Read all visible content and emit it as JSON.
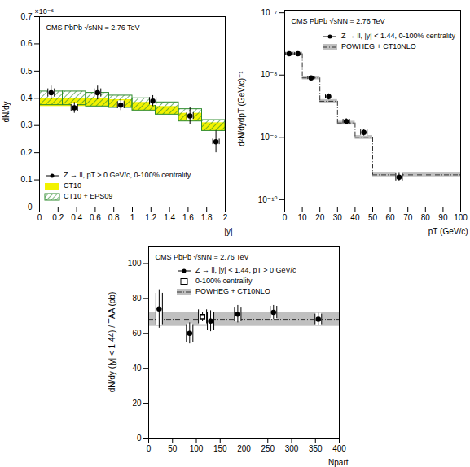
{
  "chart_data": [
    {
      "type": "errorbar",
      "annotation": "CMS PbPb √sNN = 2.76 TeV",
      "multiplier": "×10⁻⁶",
      "x_label": "|y|",
      "y_label": "dN/dy",
      "xlim": [
        0,
        2
      ],
      "xticks": [
        0,
        0.2,
        0.4,
        0.6,
        0.8,
        1,
        1.2,
        1.4,
        1.6,
        1.8,
        2
      ],
      "ylim": [
        0,
        0.7
      ],
      "yticks": [
        0,
        0.1,
        0.2,
        0.3,
        0.4,
        0.5,
        0.6,
        0.7
      ],
      "grid": false,
      "legend": "bottom-left",
      "series": [
        {
          "name": "Z → ll, pT > 0 GeV/c, 0-100% centrality",
          "type": "scatter",
          "marker": "circle",
          "color": "#000000",
          "x": [
            0.125,
            0.375,
            0.625,
            0.875,
            1.22,
            1.62,
            1.9
          ],
          "values": [
            0.42,
            0.365,
            0.42,
            0.375,
            0.39,
            0.335,
            0.24
          ],
          "stat_errors": [
            0.025,
            0.02,
            0.025,
            0.02,
            0.02,
            0.03,
            0.04
          ],
          "syst_errors": [
            0.015,
            0.012,
            0.015,
            0.013,
            0.013,
            0.012,
            0.01
          ]
        },
        {
          "name": "CT10",
          "type": "band",
          "color": "#f2f200",
          "bins": [
            0,
            0.25,
            0.5,
            0.75,
            1,
            1.25,
            1.5,
            1.75,
            2
          ],
          "lower": [
            0.37,
            0.37,
            0.37,
            0.365,
            0.355,
            0.34,
            0.315,
            0.28
          ],
          "upper": [
            0.4,
            0.4,
            0.4,
            0.395,
            0.385,
            0.37,
            0.345,
            0.31
          ]
        },
        {
          "name": "CT10 + EPS09",
          "type": "band",
          "color": "#2e8b2e",
          "line_style": "hatched",
          "bins": [
            0,
            0.25,
            0.5,
            0.75,
            1,
            1.25,
            1.5,
            1.75,
            2
          ],
          "lower": [
            0.375,
            0.375,
            0.37,
            0.365,
            0.355,
            0.34,
            0.315,
            0.28
          ],
          "upper": [
            0.425,
            0.425,
            0.42,
            0.41,
            0.4,
            0.385,
            0.36,
            0.32
          ]
        }
      ]
    },
    {
      "type": "errorbar",
      "annotation": "CMS PbPb √sNN = 2.76 TeV",
      "x_label": "pT (GeV/c)",
      "y_label": "d²N/dydpT (GeV/c)⁻¹",
      "log": "y",
      "xlim": [
        0,
        100
      ],
      "xticks": [
        0,
        10,
        20,
        30,
        40,
        50,
        60,
        70,
        80,
        90,
        100
      ],
      "ylim": [
        7.6e-11,
        1.1e-07
      ],
      "yticks": [
        {
          "value": 1e-10,
          "label": "10⁻¹⁰"
        },
        {
          "value": 1e-09,
          "label": "10⁻⁹"
        },
        {
          "value": 1e-08,
          "label": "10⁻⁸"
        },
        {
          "value": 1e-07,
          "label": "10⁻⁷"
        }
      ],
      "grid": false,
      "legend": "top-right",
      "series": [
        {
          "name": "Z → ll, |y| < 1.44, 0-100% centrality",
          "type": "scatter",
          "marker": "circle",
          "color": "#000000",
          "x": [
            2.5,
            7.5,
            15,
            25,
            35,
            45,
            65
          ],
          "values": [
            2.2e-08,
            2.2e-08,
            9e-09,
            4.5e-09,
            1.8e-09,
            1.2e-09,
            2.3e-10
          ],
          "stat_errors": [
            1.2e-09,
            1.2e-09,
            5e-10,
            5e-10,
            2e-10,
            1.5e-10,
            3.5e-11
          ],
          "syst_errors": [
            1e-09,
            1e-09,
            5e-10,
            3e-10,
            1.5e-10,
            1.2e-10,
            3e-11
          ]
        },
        {
          "name": "POWHEG + CT10NLO",
          "type": "step_band",
          "color": "#c0c0c0",
          "line_style": "dashdot",
          "bins": [
            0,
            5,
            10,
            20,
            30,
            40,
            50,
            100
          ],
          "values": [
            2.2e-08,
            2.2e-08,
            9e-09,
            3.8e-09,
            1.7e-09,
            1e-09,
            2.5e-10
          ],
          "lower": [
            2.05e-08,
            2.05e-08,
            8.4e-09,
            3.55e-09,
            1.58e-09,
            9.3e-10,
            2.33e-10
          ],
          "upper": [
            2.35e-08,
            2.35e-08,
            9.6e-09,
            4.05e-09,
            1.82e-09,
            1.07e-09,
            2.68e-10
          ]
        }
      ]
    },
    {
      "type": "errorbar",
      "annotation": "CMS PbPb √sNN = 2.76 TeV",
      "x_label": "Npart",
      "y_label": "dN/dy (|y| < 1.44) / TAA (pb)",
      "xlim": [
        0,
        400
      ],
      "xticks": [
        0,
        50,
        100,
        150,
        200,
        250,
        300,
        350,
        400
      ],
      "ylim": [
        0,
        110
      ],
      "yticks": [
        0,
        20,
        40,
        60,
        80,
        100
      ],
      "grid": false,
      "legend": "top-left",
      "series": [
        {
          "name": "Z → ll, |y| < 1.44, pT > 0 GeV/c",
          "type": "scatter",
          "marker": "circle",
          "color": "#000000",
          "x": [
            22,
            86,
            130,
            187,
            262,
            356
          ],
          "values": [
            74,
            60,
            67,
            71,
            72,
            68
          ],
          "stat_errors": [
            11,
            6,
            6,
            5,
            4,
            3.5
          ],
          "syst_errors": [
            9,
            5,
            5,
            4,
            3.5,
            3
          ]
        },
        {
          "name": "0-100% centrality",
          "type": "scatter",
          "marker": "open_square",
          "color": "#000000",
          "x": [
            113
          ],
          "values": [
            69.5
          ],
          "stat_errors": [
            2.5
          ],
          "syst_errors": [
            4
          ]
        },
        {
          "name": "POWHEG + CT10NLO",
          "type": "hband",
          "color": "#c0c0c0",
          "line_style": "dashdot",
          "value": 68,
          "lower": 64,
          "upper": 72
        }
      ]
    }
  ]
}
